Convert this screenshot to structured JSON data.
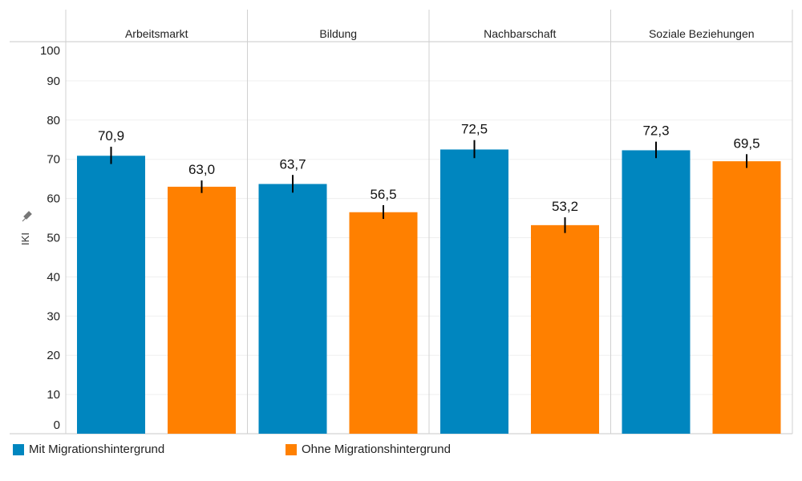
{
  "chart_data": {
    "type": "bar",
    "ylabel": "IKI",
    "ylabel_icon": "pin-icon",
    "ylim": [
      0,
      100
    ],
    "yticks": [
      0,
      10,
      20,
      30,
      40,
      50,
      60,
      70,
      80,
      90,
      100
    ],
    "grid": true,
    "legend_position": "bottom-left",
    "categories": [
      "Arbeitsmarkt",
      "Bildung",
      "Nachbarschaft",
      "Soziale Beziehungen"
    ],
    "series": [
      {
        "name": "Mit Migrationshintergrund",
        "color": "#0086BF",
        "values": [
          70.9,
          63.7,
          72.5,
          72.3
        ],
        "labels": [
          "70,9",
          "63,7",
          "72,5",
          "72,3"
        ],
        "error_low": [
          68.8,
          61.5,
          70.3,
          70.3
        ],
        "error_high": [
          73.2,
          66.0,
          74.9,
          74.5
        ]
      },
      {
        "name": "Ohne Migrationshintergrund",
        "color": "#FF8000",
        "values": [
          63.0,
          56.5,
          53.2,
          69.5
        ],
        "labels": [
          "63,0",
          "56,5",
          "53,2",
          "69,5"
        ],
        "error_low": [
          61.4,
          54.8,
          51.2,
          67.8
        ],
        "error_high": [
          64.6,
          58.3,
          55.2,
          71.3
        ]
      }
    ]
  }
}
